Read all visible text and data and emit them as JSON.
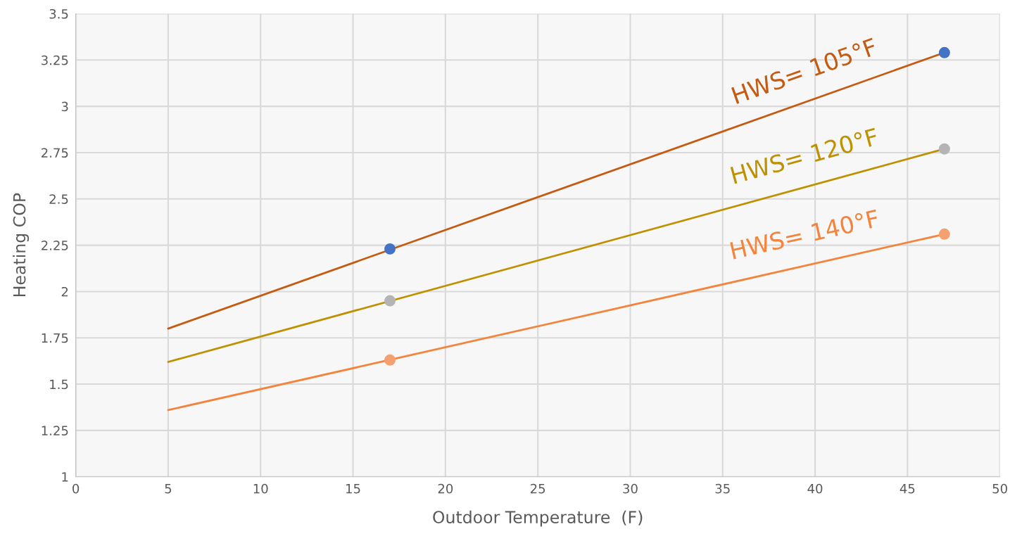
{
  "chart_data": {
    "type": "line",
    "xlabel": "Outdoor Temperature  (F)",
    "ylabel": "Heating COP",
    "xlim": [
      0,
      50
    ],
    "xticks": [
      0,
      5,
      10,
      15,
      20,
      25,
      30,
      35,
      40,
      45,
      50
    ],
    "ylim": [
      1,
      3.5
    ],
    "yticks": [
      1,
      1.25,
      1.5,
      1.75,
      2,
      2.25,
      2.5,
      2.75,
      3,
      3.25,
      3.5
    ],
    "grid": true,
    "marker": "circle",
    "series": [
      {
        "name": "HWS= 105°F",
        "marker": "none",
        "color": "#c55a11",
        "x": [
          5,
          47
        ],
        "values": [
          1.8,
          3.29
        ]
      },
      {
        "name": "HWS= 120°F",
        "marker": "none",
        "color": "#bf9000",
        "x": [
          5,
          47
        ],
        "values": [
          1.62,
          2.77
        ]
      },
      {
        "name": "HWS= 140°F",
        "marker": "none",
        "color": "#f4843c",
        "x": [
          5,
          47
        ],
        "values": [
          1.36,
          2.31
        ]
      },
      {
        "type": "scatter",
        "color": "#4472c4",
        "x": [
          17,
          47
        ],
        "values": [
          2.23,
          3.29
        ]
      },
      {
        "type": "scatter",
        "color": "#b4b4b4",
        "x": [
          17,
          47
        ],
        "values": [
          1.95,
          2.77
        ]
      },
      {
        "type": "scatter",
        "color": "#f4a070",
        "x": [
          17,
          47
        ],
        "values": [
          1.63,
          2.31
        ]
      }
    ]
  }
}
